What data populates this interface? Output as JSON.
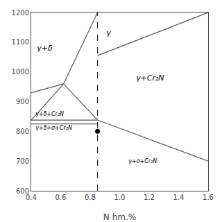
{
  "chart_data": {
    "type": "line",
    "xlabel": "N hm.%",
    "xlim": [
      0.4,
      1.6
    ],
    "ylim": [
      600,
      1200
    ],
    "xticks": [
      0.4,
      0.6,
      0.8,
      {
        "value": 1.0,
        "label": "1.0"
      },
      1.2,
      1.4,
      1.6
    ],
    "yticks": [
      600,
      700,
      800,
      900,
      1000,
      1100,
      1200
    ],
    "grid": false,
    "series": [
      {
        "x": [
          0.4,
          0.62
        ],
        "values": [
          930,
          960
        ],
        "color": "#555555"
      },
      {
        "x": [
          0.4,
          0.62
        ],
        "values": [
          838,
          960
        ],
        "color": "#555555"
      },
      {
        "x": [
          0.62,
          0.85
        ],
        "values": [
          960,
          1200
        ],
        "color": "#555555"
      },
      {
        "x": [
          0.85,
          1.6
        ],
        "values": [
          1055,
          1200
        ],
        "color": "#555555"
      },
      {
        "x": [
          0.62,
          0.85
        ],
        "values": [
          960,
          838
        ],
        "color": "#555555"
      },
      {
        "x": [
          0.85,
          1.6
        ],
        "values": [
          838,
          700
        ],
        "color": "#555555"
      },
      {
        "x": [
          0.4,
          0.85
        ],
        "values": [
          838,
          838
        ],
        "color": "#555555"
      },
      {
        "x": [
          0.4,
          0.85
        ],
        "values": [
          825,
          825
        ],
        "color": "#555555"
      },
      {
        "type": "vline",
        "x": 0.85,
        "line_style": "dashed",
        "color": "black"
      },
      {
        "type": "scatter",
        "x": [
          0.85
        ],
        "values": [
          800
        ],
        "marker": "circle",
        "color": "black"
      }
    ],
    "annotations": [
      {
        "x": 0.43,
        "y": 1080,
        "text": "γ+δ"
      },
      {
        "x": 0.9,
        "y": 1130,
        "text": "γ"
      },
      {
        "x": 1.1,
        "y": 980,
        "text": "γ+Cr₂N"
      },
      {
        "x": 0.42,
        "y": 857,
        "text": "γ+δ+Cr₂N"
      },
      {
        "x": 0.42,
        "y": 812,
        "text": "γ+δ+σ+Cr₂N"
      },
      {
        "x": 1.05,
        "y": 700,
        "text": "γ+σ+Cr₂N"
      }
    ]
  }
}
